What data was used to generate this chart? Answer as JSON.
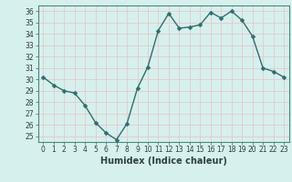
{
  "x": [
    0,
    1,
    2,
    3,
    4,
    5,
    6,
    7,
    8,
    9,
    10,
    11,
    12,
    13,
    14,
    15,
    16,
    17,
    18,
    19,
    20,
    21,
    22,
    23
  ],
  "y": [
    30.2,
    29.5,
    29.0,
    28.8,
    27.7,
    26.2,
    25.3,
    24.7,
    26.1,
    29.2,
    31.1,
    34.3,
    35.8,
    34.5,
    34.6,
    34.8,
    35.9,
    35.4,
    36.0,
    35.2,
    33.8,
    31.0,
    30.7,
    30.2
  ],
  "line_color": "#2d6e6e",
  "marker": "D",
  "marker_size": 2.5,
  "bg_color": "#d6f0ee",
  "grid_color": "#e8c8c8",
  "xlabel": "Humidex (Indice chaleur)",
  "ylabel": "",
  "xlim": [
    -0.5,
    23.5
  ],
  "ylim": [
    24.5,
    36.5
  ],
  "yticks": [
    25,
    26,
    27,
    28,
    29,
    30,
    31,
    32,
    33,
    34,
    35,
    36
  ],
  "xticks": [
    0,
    1,
    2,
    3,
    4,
    5,
    6,
    7,
    8,
    9,
    10,
    11,
    12,
    13,
    14,
    15,
    16,
    17,
    18,
    19,
    20,
    21,
    22,
    23
  ],
  "tick_fontsize": 5.5,
  "xlabel_fontsize": 7,
  "line_width": 1.0
}
